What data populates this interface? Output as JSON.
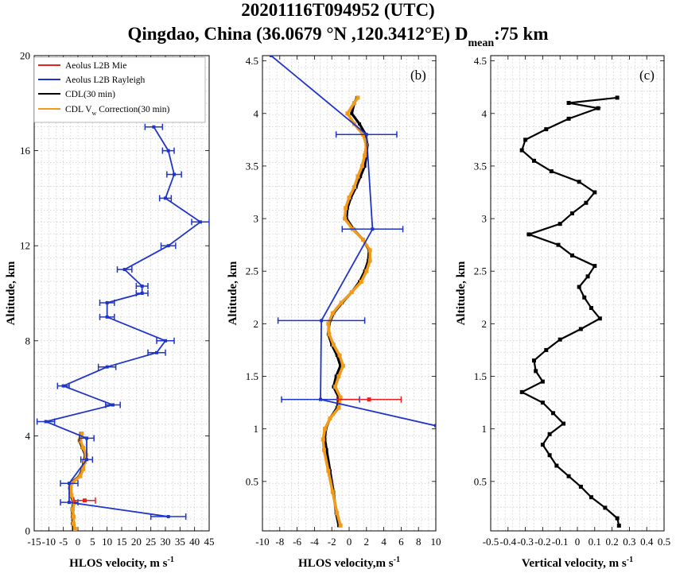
{
  "title_line1": "20201116T094952 (UTC)",
  "title_line2_main": "Qingdao, China (36.0679 °N ,120.3412°E)  D",
  "title_line2_sub": "mean",
  "title_line2_tail": ":75 km",
  "colors": {
    "mie": "#e8211f",
    "rayleigh": "#1f35c8",
    "cdl": "#000000",
    "cdl_corr": "#f29a1a"
  },
  "legend": {
    "mie": "Aeolus L2B Mie",
    "rayleigh": "Aeolus L2B Rayleigh",
    "cdl": "CDL(30 min)",
    "corr_pre": "CDL V",
    "corr_sub": "w",
    "corr_post": " Correction(30 min)"
  },
  "chart_data": [
    {
      "type": "line",
      "panel_label": "(a)",
      "xlabel": "HLOS velocity, m s",
      "xlabel_sup": "-1",
      "ylabel": "Altitude, km",
      "xlim": [
        -15,
        45
      ],
      "ylim": [
        0,
        20
      ],
      "xticks": [
        -15,
        -10,
        -5,
        0,
        5,
        10,
        15,
        20,
        25,
        30,
        35,
        40,
        45
      ],
      "xtick_labels": [
        "-15",
        "-10",
        "-5",
        "0",
        "5",
        "10",
        "15",
        "20",
        "25",
        "30",
        "35",
        "40",
        "45"
      ],
      "yticks": [
        0,
        4,
        8,
        12,
        16,
        20
      ],
      "ytick_labels": [
        "0",
        "4",
        "8",
        "12",
        "16",
        "20"
      ],
      "legend_position": "top-left",
      "rayleigh": {
        "y": [
          0.6,
          1.2,
          2.0,
          3.0,
          3.9,
          4.6,
          5.3,
          6.1,
          6.9,
          7.5,
          8.0,
          9.0,
          9.6,
          10.0,
          10.3,
          11.0,
          12.0,
          13.0,
          14.0,
          15.0,
          16.0,
          17.0
        ],
        "x": [
          31,
          -3,
          -3,
          3,
          3,
          -11,
          12,
          -5,
          10,
          27,
          30,
          10,
          10,
          22,
          22,
          16,
          31,
          42,
          30,
          33,
          31,
          26
        ],
        "err": [
          6,
          3,
          3,
          2,
          2.5,
          3,
          2.5,
          2,
          3,
          3,
          3,
          2.5,
          2.5,
          2,
          2,
          2.5,
          2.5,
          3,
          2,
          2.5,
          2,
          3
        ]
      },
      "mie": {
        "y": [
          1.28
        ],
        "x": [
          2.3
        ],
        "err": [
          3.7
        ]
      },
      "cdl": {
        "y": [
          0.08,
          0.3,
          0.6,
          0.9,
          1.2,
          1.5,
          1.8,
          2.0,
          2.3,
          2.6,
          2.9,
          3.2,
          3.5,
          3.8,
          4.1
        ],
        "x": [
          -1.5,
          -1.8,
          -1.8,
          -2.0,
          -1.5,
          -2.5,
          -2.8,
          -2.5,
          0.5,
          1.5,
          2.0,
          2.5,
          1.5,
          0.5,
          1.0
        ]
      },
      "cdl_corr": {
        "y": [
          0.08,
          0.3,
          0.6,
          0.9,
          1.2,
          1.5,
          1.8,
          2.0,
          2.3,
          2.6,
          2.9,
          3.2,
          3.5,
          3.8,
          4.1
        ],
        "x": [
          -1.0,
          -1.5,
          -1.5,
          -1.8,
          -1.2,
          -2.2,
          -2.5,
          -2.2,
          0.8,
          1.8,
          2.3,
          2.8,
          1.8,
          0.8,
          1.3
        ]
      }
    },
    {
      "type": "line",
      "panel_label": "(b)",
      "xlabel": "HLOS velocity,m s",
      "xlabel_sup": "-1",
      "ylabel": "Altitude, km",
      "xlim": [
        -10,
        10
      ],
      "ylim": [
        0.03,
        4.55
      ],
      "xticks": [
        -10,
        -8,
        -6,
        -4,
        -2,
        0,
        2,
        4,
        6,
        8,
        10
      ],
      "xtick_labels": [
        "-10",
        "-8",
        "-6",
        "-4",
        "-2",
        "0",
        "2",
        "4",
        "6",
        "8",
        "10"
      ],
      "yticks": [
        0.5,
        1,
        1.5,
        2,
        2.5,
        3,
        3.5,
        4,
        4.5
      ],
      "ytick_labels": [
        "0.5",
        "1",
        "1.5",
        "2",
        "2.5",
        "3",
        "3.5",
        "4",
        "4.5"
      ],
      "rayleigh": {
        "y": [
          4.55,
          3.8,
          2.9,
          2.03,
          1.28,
          1.03
        ],
        "x": [
          -9,
          2,
          2.7,
          -3.2,
          -3.3,
          10
        ],
        "err": [
          null,
          3.5,
          3.5,
          5,
          4.5,
          null
        ]
      },
      "mie": {
        "y": [
          1.28
        ],
        "x": [
          2.3
        ],
        "err": [
          3.7
        ]
      },
      "cdl": {
        "y": [
          0.08,
          0.2,
          0.4,
          0.6,
          0.8,
          0.9,
          1.0,
          1.1,
          1.2,
          1.3,
          1.4,
          1.5,
          1.6,
          1.7,
          1.8,
          1.9,
          2.0,
          2.1,
          2.2,
          2.3,
          2.4,
          2.5,
          2.6,
          2.7,
          2.8,
          2.9,
          3.0,
          3.1,
          3.2,
          3.3,
          3.4,
          3.5,
          3.6,
          3.7,
          3.8,
          3.9,
          4.0,
          4.1,
          4.15
        ],
        "x": [
          -1.2,
          -1.5,
          -1.8,
          -2.2,
          -2.6,
          -2.8,
          -2.7,
          -2.2,
          -1.4,
          -1.2,
          -1.8,
          -1.5,
          -1.0,
          -1.4,
          -2.0,
          -2.4,
          -2.3,
          -1.8,
          -0.8,
          0.3,
          1.2,
          1.8,
          2.2,
          2.3,
          1.6,
          0.5,
          -0.3,
          -0.2,
          0.2,
          0.8,
          1.3,
          1.8,
          2.0,
          2.1,
          1.9,
          1.2,
          0.3,
          0.6,
          0.9
        ]
      },
      "cdl_corr": {
        "y": [
          0.08,
          0.2,
          0.4,
          0.6,
          0.8,
          0.9,
          1.0,
          1.1,
          1.2,
          1.3,
          1.4,
          1.5,
          1.6,
          1.7,
          1.8,
          1.9,
          2.0,
          2.1,
          2.2,
          2.3,
          2.4,
          2.5,
          2.6,
          2.7,
          2.8,
          2.9,
          3.0,
          3.1,
          3.2,
          3.3,
          3.4,
          3.5,
          3.6,
          3.7,
          3.8,
          3.9,
          4.0,
          4.1,
          4.15
        ],
        "x": [
          -1.0,
          -1.4,
          -1.9,
          -2.4,
          -2.9,
          -3.0,
          -2.8,
          -2.2,
          -1.2,
          -1.0,
          -1.6,
          -1.2,
          -0.7,
          -1.1,
          -1.8,
          -2.3,
          -2.4,
          -1.9,
          -0.9,
          0.3,
          1.4,
          2.0,
          2.4,
          2.4,
          1.6,
          0.4,
          -0.5,
          -0.4,
          0.0,
          0.6,
          1.0,
          1.5,
          1.8,
          2.0,
          1.6,
          0.6,
          -0.2,
          0.6,
          1.0
        ]
      }
    },
    {
      "type": "line",
      "panel_label": "(c)",
      "xlabel": "Vertical velocity, m s",
      "xlabel_sup": "-1",
      "ylabel": "Altitude, km",
      "xlim": [
        -0.5,
        0.5
      ],
      "ylim": [
        0.03,
        4.55
      ],
      "xticks": [
        -0.5,
        -0.4,
        -0.3,
        -0.2,
        -0.1,
        0,
        0.1,
        0.2,
        0.3,
        0.4,
        0.5
      ],
      "xtick_labels": [
        "-0.5",
        "-0.4",
        "-0.3",
        "-0.2",
        "-0.1",
        "0",
        "0.1",
        "0.2",
        "0.3",
        "0.4",
        "0.5"
      ],
      "yticks": [
        0.5,
        1,
        1.5,
        2,
        2.5,
        3,
        3.5,
        4,
        4.5
      ],
      "ytick_labels": [
        "0.5",
        "1",
        "1.5",
        "2",
        "2.5",
        "3",
        "3.5",
        "4",
        "4.5"
      ],
      "cdl_w": {
        "y": [
          0.08,
          0.15,
          0.25,
          0.35,
          0.45,
          0.55,
          0.65,
          0.75,
          0.85,
          0.95,
          1.05,
          1.15,
          1.25,
          1.35,
          1.45,
          1.55,
          1.65,
          1.75,
          1.85,
          1.95,
          2.05,
          2.15,
          2.25,
          2.35,
          2.45,
          2.55,
          2.65,
          2.75,
          2.85,
          2.95,
          3.05,
          3.15,
          3.25,
          3.35,
          3.45,
          3.55,
          3.65,
          3.75,
          3.85,
          3.95,
          4.05,
          4.1,
          4.15
        ],
        "x": [
          0.24,
          0.23,
          0.16,
          0.08,
          0.02,
          -0.05,
          -0.12,
          -0.16,
          -0.2,
          -0.16,
          -0.08,
          -0.14,
          -0.2,
          -0.32,
          -0.2,
          -0.24,
          -0.25,
          -0.18,
          -0.1,
          0.02,
          0.13,
          0.08,
          0.04,
          0.01,
          0.06,
          0.1,
          -0.03,
          -0.11,
          -0.28,
          -0.1,
          -0.03,
          0.05,
          0.1,
          0.01,
          -0.15,
          -0.25,
          -0.32,
          -0.3,
          -0.18,
          -0.05,
          0.12,
          -0.05,
          0.23
        ]
      }
    }
  ]
}
